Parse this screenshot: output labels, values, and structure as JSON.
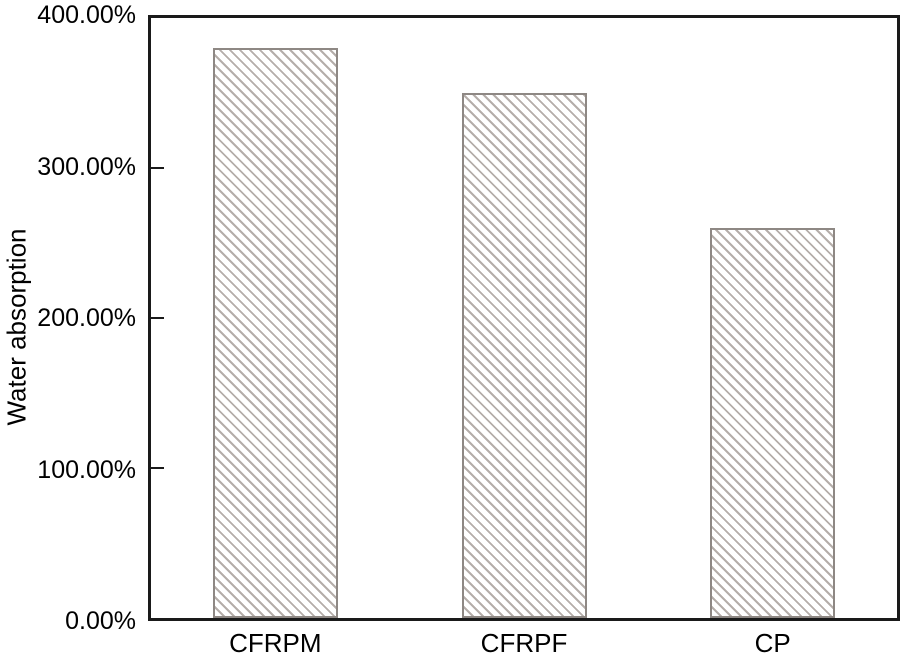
{
  "figure": {
    "background": "#ffffff"
  },
  "chart_data": {
    "type": "bar",
    "title": "",
    "xlabel": "",
    "ylabel": "Water absorption",
    "categories": [
      "CFRPM",
      "CFRPF",
      "CP"
    ],
    "values": [
      380,
      350,
      260
    ],
    "value_unit": "%",
    "ylim": [
      0,
      400
    ],
    "yticks": [
      0,
      100,
      200,
      300,
      400
    ],
    "ytick_labels": [
      "0.00%",
      "100.00%",
      "200.00%",
      "300.00%",
      "400.00%"
    ],
    "grid": false,
    "legend_position": "none",
    "bar_style": {
      "fill": "#ffffff",
      "hatch": "backslash-diagonal",
      "hatch_color": "#b5aeaa",
      "border_color": "#8e8884"
    },
    "axis_color": "#1a1a1a",
    "text_color": "#000000"
  }
}
